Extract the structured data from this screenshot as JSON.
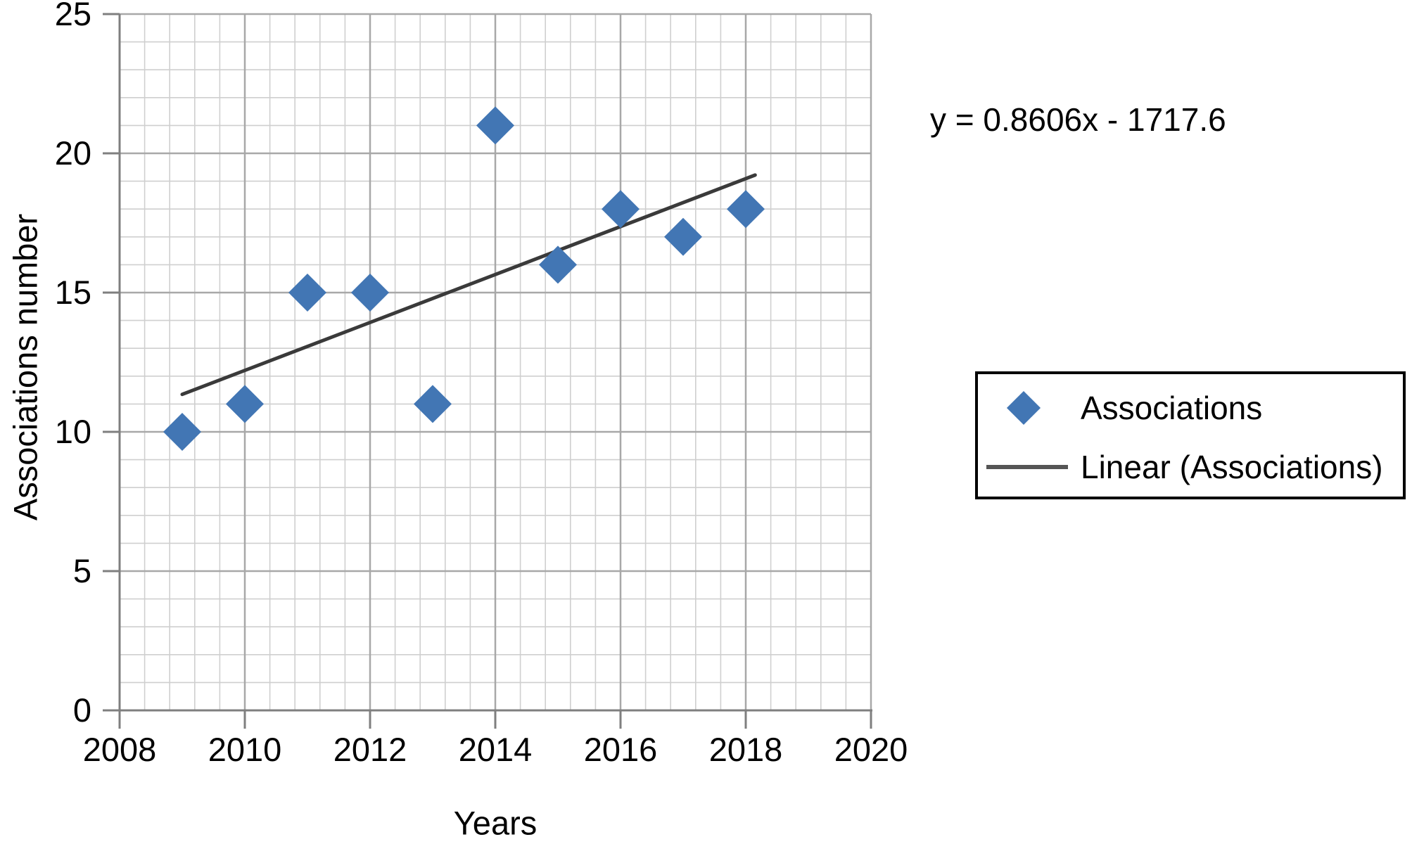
{
  "chart_data": {
    "type": "scatter",
    "xlabel": "Years",
    "ylabel": "Associations number",
    "xlim": [
      2008,
      2020
    ],
    "ylim": [
      0,
      25
    ],
    "x_major_ticks": [
      2008,
      2010,
      2012,
      2014,
      2016,
      2018,
      2020
    ],
    "y_major_ticks": [
      0,
      5,
      10,
      15,
      20,
      25
    ],
    "x_minor_step": 0.4,
    "y_minor_step": 1,
    "grid": "major+minor",
    "series": [
      {
        "name": "Associations",
        "marker": "diamond",
        "color": "#4276b4",
        "points": [
          {
            "x": 2009,
            "y": 10
          },
          {
            "x": 2010,
            "y": 11
          },
          {
            "x": 2011,
            "y": 15
          },
          {
            "x": 2012,
            "y": 15
          },
          {
            "x": 2013,
            "y": 11
          },
          {
            "x": 2014,
            "y": 21
          },
          {
            "x": 2015,
            "y": 16
          },
          {
            "x": 2016,
            "y": 18
          },
          {
            "x": 2017,
            "y": 17
          },
          {
            "x": 2018,
            "y": 18
          }
        ]
      }
    ],
    "trendline": {
      "name": "Linear (Associations)",
      "equation_label": "y = 0.8606x - 1717.6",
      "slope": 0.8606,
      "intercept": -1717.6,
      "x_start": 2009,
      "x_end": 2018.15,
      "color": "#3a3a3a"
    },
    "legend": {
      "position": "right",
      "entries": [
        {
          "label": "Associations",
          "marker": "diamond",
          "color": "#4276b4"
        },
        {
          "label": "Linear (Associations)",
          "marker": "line",
          "color": "#555555"
        }
      ]
    },
    "colors": {
      "minor_grid": "#cfcfcf",
      "major_grid": "#a8a8a8",
      "axis": "#7f7f7f",
      "text": "#000000",
      "background": "#ffffff"
    }
  }
}
